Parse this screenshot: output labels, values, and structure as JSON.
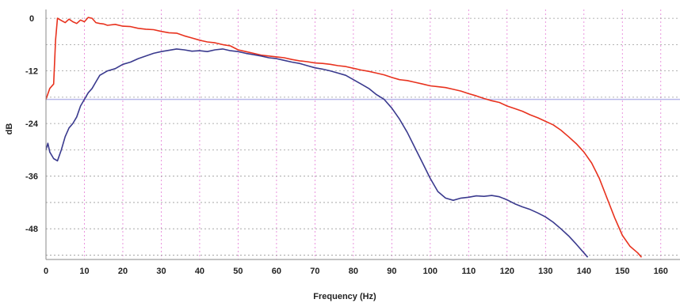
{
  "chart_data": {
    "type": "line",
    "title": "",
    "xlabel": "Frequency (Hz)",
    "ylabel": "dB",
    "xlim": [
      0,
      165
    ],
    "ylim": [
      -55,
      2
    ],
    "xticks": [
      0,
      10,
      20,
      30,
      40,
      50,
      60,
      70,
      80,
      90,
      100,
      110,
      120,
      130,
      140,
      150,
      160
    ],
    "yticks": [
      0,
      -12,
      -24,
      -36,
      -48
    ],
    "grid": true,
    "legend": "none",
    "reference_line": {
      "y": -18.5,
      "color": "#b7b7ea"
    },
    "series": [
      {
        "color": "#e8321e",
        "points": [
          [
            0,
            -18.5
          ],
          [
            1,
            -16
          ],
          [
            2,
            -15
          ],
          [
            2.5,
            -5
          ],
          [
            3,
            0
          ],
          [
            4,
            -0.5
          ],
          [
            5,
            -1
          ],
          [
            6,
            -0.2
          ],
          [
            7,
            -0.8
          ],
          [
            8,
            -1.2
          ],
          [
            9,
            -0.4
          ],
          [
            10,
            -0.8
          ],
          [
            11,
            0.2
          ],
          [
            12,
            0
          ],
          [
            13,
            -1
          ],
          [
            14,
            -1.2
          ],
          [
            15,
            -1.3
          ],
          [
            16,
            -1.6
          ],
          [
            18,
            -1.4
          ],
          [
            20,
            -1.8
          ],
          [
            22,
            -1.9
          ],
          [
            24,
            -2.3
          ],
          [
            26,
            -2.5
          ],
          [
            28,
            -2.6
          ],
          [
            30,
            -3
          ],
          [
            32,
            -3.3
          ],
          [
            34,
            -3.4
          ],
          [
            36,
            -4
          ],
          [
            38,
            -4.5
          ],
          [
            40,
            -5
          ],
          [
            42,
            -5.4
          ],
          [
            44,
            -5.6
          ],
          [
            46,
            -6
          ],
          [
            48,
            -6.3
          ],
          [
            50,
            -7.2
          ],
          [
            52,
            -7.6
          ],
          [
            54,
            -8
          ],
          [
            56,
            -8.4
          ],
          [
            58,
            -8.6
          ],
          [
            60,
            -8.8
          ],
          [
            62,
            -9
          ],
          [
            64,
            -9.4
          ],
          [
            66,
            -9.7
          ],
          [
            68,
            -9.9
          ],
          [
            70,
            -10.2
          ],
          [
            72,
            -10.3
          ],
          [
            74,
            -10.5
          ],
          [
            76,
            -10.8
          ],
          [
            78,
            -11
          ],
          [
            80,
            -11.4
          ],
          [
            82,
            -11.8
          ],
          [
            84,
            -12.1
          ],
          [
            86,
            -12.5
          ],
          [
            88,
            -12.9
          ],
          [
            90,
            -13.5
          ],
          [
            92,
            -14
          ],
          [
            94,
            -14.2
          ],
          [
            96,
            -14.6
          ],
          [
            98,
            -15
          ],
          [
            100,
            -15.4
          ],
          [
            102,
            -15.6
          ],
          [
            104,
            -15.8
          ],
          [
            106,
            -16.2
          ],
          [
            108,
            -16.6
          ],
          [
            110,
            -17.2
          ],
          [
            112,
            -17.7
          ],
          [
            114,
            -18.3
          ],
          [
            116,
            -18.8
          ],
          [
            118,
            -19.2
          ],
          [
            120,
            -20
          ],
          [
            122,
            -20.6
          ],
          [
            124,
            -21.2
          ],
          [
            126,
            -22
          ],
          [
            128,
            -22.7
          ],
          [
            130,
            -23.5
          ],
          [
            132,
            -24.3
          ],
          [
            134,
            -25.5
          ],
          [
            136,
            -27
          ],
          [
            138,
            -28.6
          ],
          [
            140,
            -30.5
          ],
          [
            142,
            -33
          ],
          [
            144,
            -36.5
          ],
          [
            146,
            -41
          ],
          [
            148,
            -45.5
          ],
          [
            150,
            -49.5
          ],
          [
            152,
            -52
          ],
          [
            154,
            -53.5
          ],
          [
            155,
            -54.5
          ]
        ]
      },
      {
        "color": "#3a3a8e",
        "points": [
          [
            0,
            -30
          ],
          [
            0.5,
            -28.5
          ],
          [
            1,
            -30.5
          ],
          [
            2,
            -32
          ],
          [
            3,
            -32.5
          ],
          [
            4,
            -30
          ],
          [
            5,
            -27
          ],
          [
            6,
            -25
          ],
          [
            7,
            -24
          ],
          [
            8,
            -22.5
          ],
          [
            9,
            -20
          ],
          [
            10,
            -18.5
          ],
          [
            11,
            -17
          ],
          [
            12,
            -16
          ],
          [
            13,
            -14.5
          ],
          [
            14,
            -13
          ],
          [
            15,
            -12.5
          ],
          [
            16,
            -12
          ],
          [
            18,
            -11.5
          ],
          [
            20,
            -10.5
          ],
          [
            22,
            -10
          ],
          [
            24,
            -9.2
          ],
          [
            26,
            -8.6
          ],
          [
            28,
            -8
          ],
          [
            30,
            -7.6
          ],
          [
            32,
            -7.3
          ],
          [
            34,
            -7
          ],
          [
            36,
            -7.2
          ],
          [
            38,
            -7.5
          ],
          [
            40,
            -7.4
          ],
          [
            42,
            -7.6
          ],
          [
            44,
            -7.2
          ],
          [
            46,
            -7
          ],
          [
            48,
            -7.4
          ],
          [
            50,
            -7.6
          ],
          [
            52,
            -8
          ],
          [
            54,
            -8.3
          ],
          [
            56,
            -8.6
          ],
          [
            58,
            -9
          ],
          [
            60,
            -9.2
          ],
          [
            62,
            -9.6
          ],
          [
            64,
            -10
          ],
          [
            66,
            -10.3
          ],
          [
            68,
            -10.8
          ],
          [
            70,
            -11.3
          ],
          [
            72,
            -11.6
          ],
          [
            74,
            -12
          ],
          [
            76,
            -12.5
          ],
          [
            78,
            -13
          ],
          [
            80,
            -14
          ],
          [
            82,
            -15
          ],
          [
            84,
            -16
          ],
          [
            86,
            -17.4
          ],
          [
            88,
            -18.5
          ],
          [
            90,
            -20.5
          ],
          [
            92,
            -23
          ],
          [
            94,
            -26
          ],
          [
            96,
            -29.5
          ],
          [
            98,
            -33
          ],
          [
            100,
            -36.5
          ],
          [
            102,
            -39.5
          ],
          [
            104,
            -41
          ],
          [
            106,
            -41.5
          ],
          [
            108,
            -41
          ],
          [
            110,
            -40.8
          ],
          [
            112,
            -40.5
          ],
          [
            114,
            -40.6
          ],
          [
            116,
            -40.4
          ],
          [
            118,
            -40.7
          ],
          [
            120,
            -41.4
          ],
          [
            122,
            -42.3
          ],
          [
            124,
            -43
          ],
          [
            126,
            -43.6
          ],
          [
            128,
            -44.4
          ],
          [
            130,
            -45.3
          ],
          [
            132,
            -46.5
          ],
          [
            134,
            -48
          ],
          [
            136,
            -49.6
          ],
          [
            138,
            -51.5
          ],
          [
            140,
            -53.5
          ],
          [
            141,
            -54.5
          ]
        ]
      }
    ]
  },
  "colors": {
    "grid_vertical": "#e57bd6",
    "grid_horizontal": "#9a9a9a",
    "axis": "#8a8a8a"
  }
}
